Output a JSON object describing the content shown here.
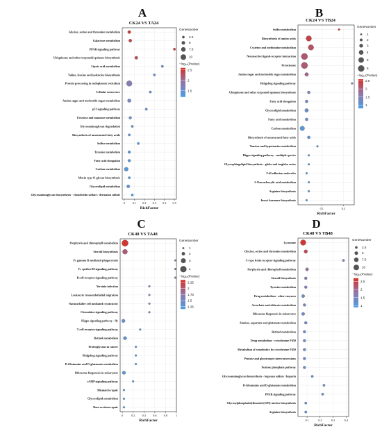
{
  "chart_data": [
    {
      "type": "scatter",
      "panel": "A",
      "title": "CK24 VS TA24",
      "xlabel": "RichFactor",
      "xlim": [
        -0.02,
        0.52
      ],
      "xticks": [
        0,
        0.1,
        0.2,
        0.3,
        0.4,
        0.5
      ],
      "tick_labels": [
        "0",
        "0.1",
        "0.2",
        "0.3",
        "0.4",
        "0.5"
      ],
      "size_legend_title": "GeneNumber",
      "size_legend": [
        2.5,
        5,
        7.5,
        10
      ],
      "size_range": [
        1,
        12
      ],
      "color_legend_title": "−log₁₀(Pvalue)",
      "color_ticks": [
        2.5,
        2,
        1.5
      ],
      "color_range": [
        1.2,
        2.6
      ],
      "categories": [
        "Glycine, serine and threonine metabolism",
        "Galactose metabolism",
        "PPAR signaling pathway",
        "Ubiquinone and other terpenoid-quinone biosynthesis",
        "Lipoic acid metabolism",
        "Valine, leucine and isoleucine biosynthesis",
        "Protein processing in endoplasmic reticulum",
        "Cellular senescence",
        "Amino sugar and nucleotide sugar metabolism",
        "p53 signaling pathway",
        "Fructose and mannose metabolism",
        "Glycosaminoglycan degradation",
        "Biosynthesis of unsaturated fatty acids",
        "Sulfur metabolism",
        "Tyrosine metabolism",
        "Fatty acid elongation",
        "Carbon metabolism",
        "Mucin type O-glycan biosynthesis",
        "Glycerolipid metabolism",
        "Glycosaminoglycan biosynthesis - chondroitin sulfate / dermatan sulfate"
      ],
      "x": [
        0.05,
        0.06,
        0.5,
        0.12,
        0.38,
        0.3,
        0.05,
        0.26,
        0.05,
        0.22,
        0.06,
        0.08,
        0.05,
        0.14,
        0.05,
        0.05,
        0.02,
        0.05,
        0.04,
        0.08
      ],
      "gene_number": [
        4,
        4,
        2,
        4,
        2,
        2,
        10,
        2,
        5,
        2,
        3,
        2,
        2,
        2,
        3,
        3,
        6,
        2,
        4,
        2
      ],
      "neglog10p": [
        2.5,
        2.4,
        2.5,
        2.3,
        1.5,
        1.5,
        1.8,
        1.5,
        1.6,
        1.5,
        1.5,
        1.5,
        1.4,
        1.3,
        1.3,
        1.3,
        1.3,
        1.3,
        1.3,
        1.2
      ]
    },
    {
      "type": "scatter",
      "panel": "B",
      "title": "CK24 VS TB24",
      "xlabel": "RichFactor",
      "xlim": [
        -0.01,
        0.25
      ],
      "xticks": [
        0.1,
        0.2
      ],
      "tick_labels": [
        "0.1",
        "0.2"
      ],
      "size_legend_title": "GeneNumber",
      "size_legend": [
        1,
        2,
        3,
        4,
        5,
        6
      ],
      "size_range": [
        1,
        6
      ],
      "color_legend_title": "−log₁₀(Pvalue)",
      "color_ticks": [
        2.5,
        2,
        1.5,
        1
      ],
      "color_range": [
        0.8,
        2.6
      ],
      "categories": [
        "Sulfur metabolism",
        "Biosynthesis of amino acids",
        "Cysteine and methionine metabolism",
        "Neuroactive ligand-receptor interaction",
        "Peroxisome",
        "Amino sugar and nucleotide sugar metabolism",
        "Hedgehog signaling pathway",
        "Ubiquinone and other terpenoid-quinone biosynthesis",
        "Fatty acid elongation",
        "Glycerolipid metabolism",
        "Fatty acid metabolism",
        "Carbon metabolism",
        "Biosynthesis of unsaturated fatty acids",
        "Taurine and hypotaurine metabolism",
        "Hippo signaling pathway - multiple species",
        "Glycosphingolipid biosynthesis - globo and isoglobo series",
        "Cell adhesion molecules",
        "2-Oxocarboxylic acid metabolism",
        "Arginine biosynthesis",
        "Insect hormone biosynthesis"
      ],
      "x": [
        0.18,
        0.04,
        0.05,
        0.02,
        0.02,
        0.03,
        0.24,
        0.04,
        0.03,
        0.03,
        0.03,
        0.01,
        0.04,
        0.08,
        0.04,
        0.04,
        0.03,
        0.04,
        0.04,
        0.03
      ],
      "gene_number": [
        1,
        5,
        5,
        6,
        6,
        3,
        1,
        2,
        2,
        3,
        2,
        4,
        2,
        1,
        1,
        1,
        1,
        1,
        1,
        1
      ],
      "neglog10p": [
        2.5,
        2.4,
        2.2,
        2.1,
        2.1,
        1.9,
        1.5,
        1.4,
        1.3,
        1.2,
        1.2,
        1.0,
        1.1,
        1.1,
        1.0,
        1.0,
        0.9,
        0.9,
        0.9,
        0.9
      ]
    },
    {
      "type": "scatter",
      "panel": "C",
      "title": "CK48 VS TA48",
      "xlabel": "RichFactor",
      "xlim": [
        -0.04,
        1.0
      ],
      "xticks": [
        0,
        0.2,
        0.4,
        0.6,
        0.8,
        1
      ],
      "tick_labels": [
        "0",
        "0.2",
        "0.4",
        "0.6",
        "0.8",
        "1"
      ],
      "size_legend_title": "GeneNumber",
      "size_legend": [
        1,
        2,
        3,
        4
      ],
      "size_range": [
        1,
        4
      ],
      "color_legend_title": "−log₁₀(Pvalue)",
      "color_ticks": [
        2.25,
        2,
        1.75,
        1.5,
        1.25
      ],
      "color_range": [
        1.15,
        2.35
      ],
      "categories": [
        "Porphyrin and chlorophyll metabolism",
        "Steroid biosynthesis",
        "Fc gamma R-mediated phagocytosis",
        "Fc epsilon RI signaling pathway",
        "B cell receptor signaling pathway",
        "Yersinia infection",
        "Leukocyte transendothelial migration",
        "Natural killer cell mediated cytotoxicity",
        "Chemokine signaling pathway",
        "Hippo signaling pathway - fly",
        "T cell receptor signaling pathway",
        "Retinol metabolism",
        "Proteoglycans in cancer",
        "Hedgehog signaling pathway",
        "D-Glutamine and D-glutamate metabolism",
        "Ribosome biogenesis in eukaryotes",
        "cAMP signaling pathway",
        "Mismatch repair",
        "Glycerolipid metabolism",
        "Base excision repair"
      ],
      "x": [
        0.05,
        0.05,
        0.98,
        0.98,
        0.98,
        0.5,
        0.5,
        0.5,
        0.5,
        0.02,
        0.33,
        0.05,
        0.25,
        0.25,
        0.25,
        0.03,
        0.2,
        0.03,
        0.03,
        0.03
      ],
      "gene_number": [
        4,
        3,
        1,
        1,
        1,
        1,
        1,
        1,
        1,
        2,
        1,
        2,
        1,
        1,
        1,
        2,
        1,
        1,
        1,
        1
      ],
      "neglog10p": [
        2.3,
        2.0,
        1.8,
        1.8,
        1.8,
        1.5,
        1.5,
        1.5,
        1.5,
        1.4,
        1.3,
        1.3,
        1.3,
        1.3,
        1.3,
        1.3,
        1.2,
        1.2,
        1.2,
        1.2
      ]
    },
    {
      "type": "scatter",
      "panel": "D",
      "title": "CK48 VS TB48",
      "xlabel": "RichFactor",
      "xlim": [
        0.03,
        0.42
      ],
      "xticks": [
        0.1,
        0.2,
        0.3,
        0.4
      ],
      "tick_labels": [
        "0.1",
        "0.2",
        "0.3",
        "0.4"
      ],
      "size_legend_title": "GeneNumber",
      "size_legend": [
        2.5,
        5,
        7.5,
        10
      ],
      "size_range": [
        1,
        12
      ],
      "color_legend_title": "−log₁₀(Pvalue)",
      "color_ticks": [
        2.5,
        2,
        1.5,
        1
      ],
      "color_range": [
        0.9,
        2.7
      ],
      "categories": [
        "Lysosome",
        "Glycine, serine and threonine metabolism",
        "C-type lectin receptor signaling pathway",
        "Porphyrin and chlorophyll metabolism",
        "Steroid biosynthesis",
        "Tyrosine metabolism",
        "Drug metabolism - other enzymes",
        "Ascorbate and aldarate metabolism",
        "Ribosome biogenesis in eukaryotes",
        "Alanine, aspartate and glutamate metabolism",
        "Retinol metabolism",
        "Drug metabolism - cytochrome P450",
        "Metabolism of xenobiotics by cytochrome P450",
        "Pentose and glucuronate interconversions",
        "Pentose phosphate pathway",
        "Glycosaminoglycan biosynthesis - heparan sulfate / heparin",
        "D-Glutamine and D-glutamate metabolism",
        "PPAR signaling pathway",
        "Glycosylphosphatidylinositol (GPI)-anchor biosynthesis",
        "Arginine biosynthesis"
      ],
      "x": [
        0.07,
        0.09,
        0.38,
        0.1,
        0.09,
        0.09,
        0.07,
        0.08,
        0.07,
        0.09,
        0.08,
        0.08,
        0.08,
        0.08,
        0.08,
        0.14,
        0.23,
        0.22,
        0.09,
        0.09
      ],
      "gene_number": [
        10,
        5,
        2,
        4,
        3,
        3,
        4,
        3,
        4,
        3,
        3,
        3,
        3,
        3,
        3,
        2,
        2,
        2,
        2,
        2
      ],
      "neglog10p": [
        2.6,
        2.4,
        1.6,
        1.9,
        1.7,
        1.6,
        1.4,
        1.5,
        1.4,
        1.4,
        1.4,
        1.3,
        1.3,
        1.3,
        1.3,
        1.3,
        1.3,
        1.3,
        1.2,
        1.1
      ]
    }
  ]
}
